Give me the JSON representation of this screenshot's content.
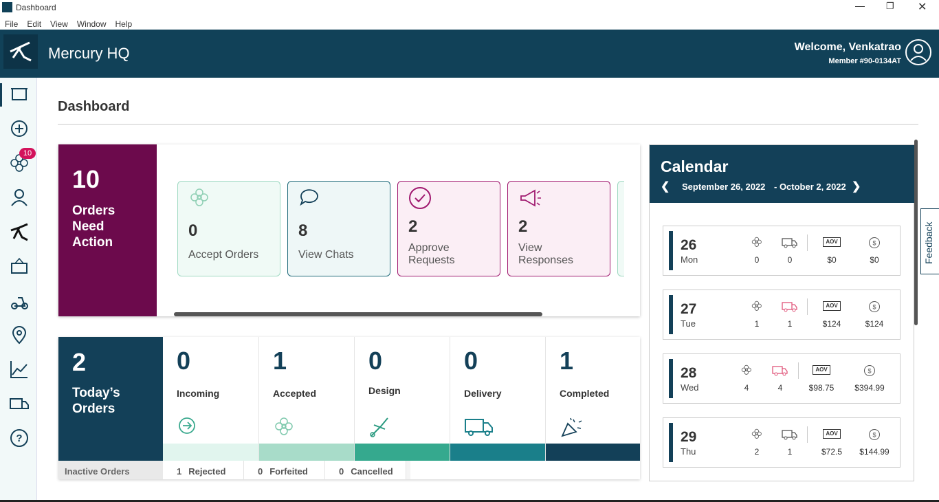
{
  "window": {
    "title": "Dashboard",
    "menu": [
      "File",
      "Edit",
      "View",
      "Window",
      "Help"
    ]
  },
  "header": {
    "app_name": "Mercury HQ",
    "welcome": "Welcome, Venkatrao",
    "member": "Member #90-0134AT"
  },
  "sidebar": {
    "badge": "10"
  },
  "page_title": "Dashboard",
  "action_panel": {
    "count": "10",
    "label": "Orders Need Action",
    "tiles": [
      {
        "count": "0",
        "label": "Accept Orders"
      },
      {
        "count": "8",
        "label": "View Chats"
      },
      {
        "count": "2",
        "label": "Approve Requests"
      },
      {
        "count": "2",
        "label": "View Responses"
      }
    ]
  },
  "todays_orders": {
    "count": "2",
    "label": "Today’s Orders",
    "stages": [
      {
        "count": "0",
        "label": "Incoming"
      },
      {
        "count": "1",
        "label": "Accepted"
      },
      {
        "count": "0",
        "label": "Design"
      },
      {
        "count": "0",
        "label": "Delivery"
      },
      {
        "count": "1",
        "label": "Completed"
      }
    ],
    "inactive": {
      "label": "Inactive Orders",
      "items": [
        {
          "count": "1",
          "label": "Rejected"
        },
        {
          "count": "0",
          "label": "Forfeited"
        },
        {
          "count": "0",
          "label": "Cancelled"
        }
      ]
    }
  },
  "calendar": {
    "title": "Calendar",
    "range_start": "September 26, 2022",
    "range_end": "- October 2, 2022",
    "aov_label": "AOV",
    "days": [
      {
        "date": "26",
        "weekday": "Mon",
        "orders": "0",
        "deliveries": "0",
        "aov": "$0",
        "revenue": "$0"
      },
      {
        "date": "27",
        "weekday": "Tue",
        "orders": "1",
        "deliveries": "1",
        "aov": "$124",
        "revenue": "$124"
      },
      {
        "date": "28",
        "weekday": "Wed",
        "orders": "4",
        "deliveries": "4",
        "aov": "$98.75",
        "revenue": "$394.99"
      },
      {
        "date": "29",
        "weekday": "Thu",
        "orders": "2",
        "deliveries": "1",
        "aov": "$72.5",
        "revenue": "$144.99"
      }
    ]
  },
  "feedback": "Feedback"
}
